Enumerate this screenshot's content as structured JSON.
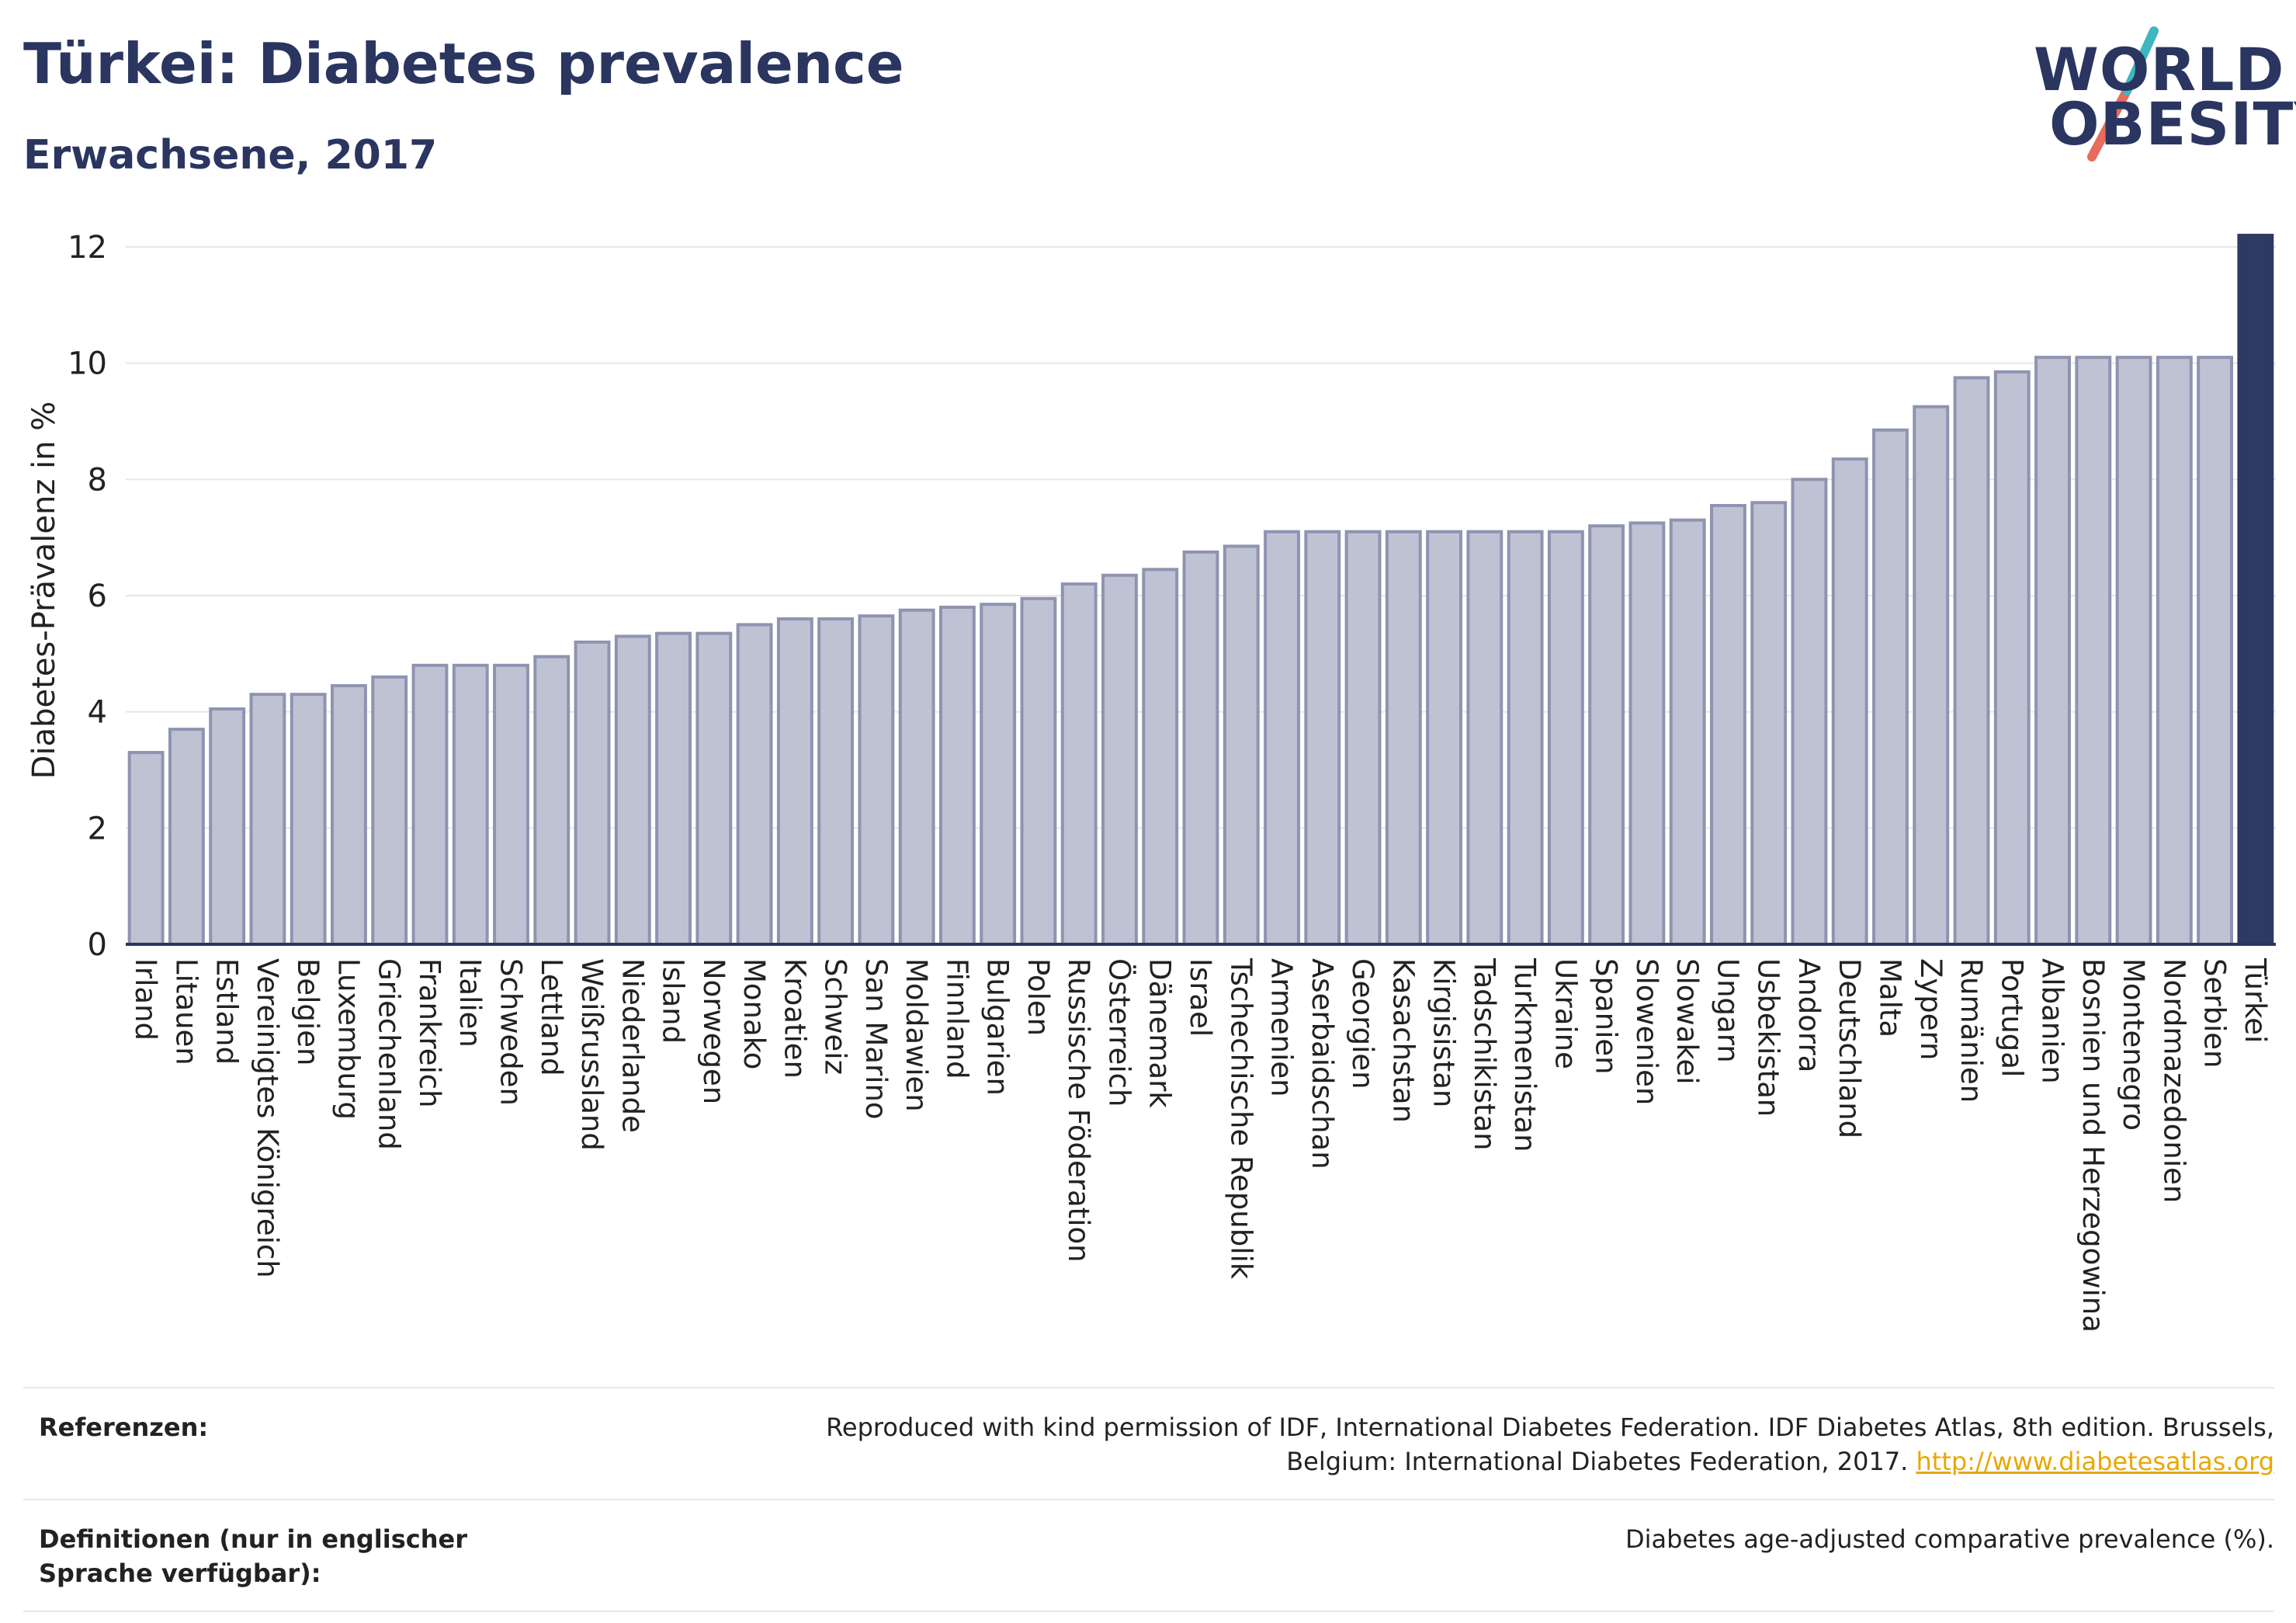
{
  "header": {
    "title": "Türkei: Diabetes prevalence",
    "subtitle": "Erwachsene, 2017"
  },
  "logo": {
    "line1": "WORLD",
    "line2": "OBESITY",
    "colors": {
      "navy": "#2a3560",
      "teal": "#3fb6c0",
      "coral": "#e96b5b"
    }
  },
  "colors": {
    "bar_fill": "#bfc2d3",
    "bar_stroke": "#8e94b0",
    "highlight": "#2d3a62",
    "grid": "#e6e6e6",
    "axis": "#2a3560"
  },
  "chart_data": {
    "type": "bar",
    "title": "Türkei: Diabetes prevalence",
    "subtitle": "Erwachsene, 2017",
    "ylabel": "Diabetes-Prävalenz in %",
    "xlabel": "",
    "ylim": [
      0,
      12
    ],
    "yticks": [
      0,
      2,
      4,
      6,
      8,
      10,
      12
    ],
    "grid": true,
    "highlight": "Türkei",
    "categories": [
      "Irland",
      "Litauen",
      "Estland",
      "Vereinigtes Königreich",
      "Belgien",
      "Luxemburg",
      "Griechenland",
      "Frankreich",
      "Italien",
      "Schweden",
      "Lettland",
      "Weißrussland",
      "Niederlande",
      "Island",
      "Norwegen",
      "Monako",
      "Kroatien",
      "Schweiz",
      "San Marino",
      "Moldawien",
      "Finnland",
      "Bulgarien",
      "Polen",
      "Russische Föderation",
      "Österreich",
      "Dänemark",
      "Israel",
      "Tschechische Republik",
      "Armenien",
      "Aserbaidschan",
      "Georgien",
      "Kasachstan",
      "Kirgisistan",
      "Tadschikistan",
      "Turkmenistan",
      "Ukraine",
      "Spanien",
      "Slowenien",
      "Slowakei",
      "Ungarn",
      "Usbekistan",
      "Andorra",
      "Deutschland",
      "Malta",
      "Zypern",
      "Rumänien",
      "Portugal",
      "Albanien",
      "Bosnien und Herzegowina",
      "Montenegro",
      "Nordmazedonien",
      "Serbien",
      "Türkei"
    ],
    "values": [
      3.3,
      3.7,
      4.05,
      4.3,
      4.3,
      4.45,
      4.6,
      4.8,
      4.8,
      4.8,
      4.95,
      5.2,
      5.3,
      5.35,
      5.35,
      5.5,
      5.6,
      5.6,
      5.65,
      5.75,
      5.8,
      5.85,
      5.95,
      6.2,
      6.35,
      6.45,
      6.75,
      6.85,
      7.1,
      7.1,
      7.1,
      7.1,
      7.1,
      7.1,
      7.1,
      7.1,
      7.2,
      7.25,
      7.3,
      7.55,
      7.6,
      8.0,
      8.35,
      8.85,
      9.25,
      9.75,
      9.85,
      10.1,
      10.1,
      10.1,
      10.1,
      10.1,
      12.2
    ]
  },
  "footer": {
    "references_label": "Referenzen:",
    "references_text": "Reproduced with kind permission of IDF, International Diabetes Federation. IDF Diabetes Atlas, 8th edition. Brussels, Belgium: International Diabetes Federation, 2017.",
    "references_link": "http://www.diabetesatlas.org",
    "definitions_label": "Definitionen (nur in englischer Sprache verfügbar):",
    "definitions_text": "Diabetes age-adjusted comparative prevalence (%)."
  }
}
